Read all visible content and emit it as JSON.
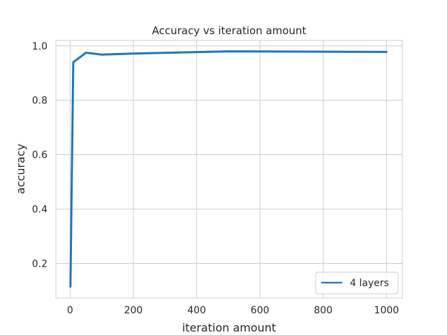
{
  "chart_data": {
    "type": "line",
    "title": "Accuracy vs iteration amount",
    "xlabel": "iteration amount",
    "ylabel": "accuracy",
    "xlim": [
      -45,
      1050
    ],
    "ylim": [
      0.073,
      1.02
    ],
    "xticks": [
      0,
      200,
      400,
      600,
      800,
      1000
    ],
    "xtick_labels": [
      "0",
      "200",
      "400",
      "600",
      "800",
      "1000"
    ],
    "yticks": [
      0.2,
      0.4,
      0.6,
      0.8,
      1.0
    ],
    "ytick_labels": [
      "0.2",
      "0.4",
      "0.6",
      "0.8",
      "1.0"
    ],
    "grid": true,
    "legend_position": "lower-right",
    "series": [
      {
        "name": "4 layers",
        "color": "#1f77b4",
        "x": [
          1,
          10,
          50,
          100,
          200,
          500,
          1000
        ],
        "y": [
          0.115,
          0.94,
          0.975,
          0.968,
          0.972,
          0.98,
          0.978
        ]
      }
    ]
  }
}
